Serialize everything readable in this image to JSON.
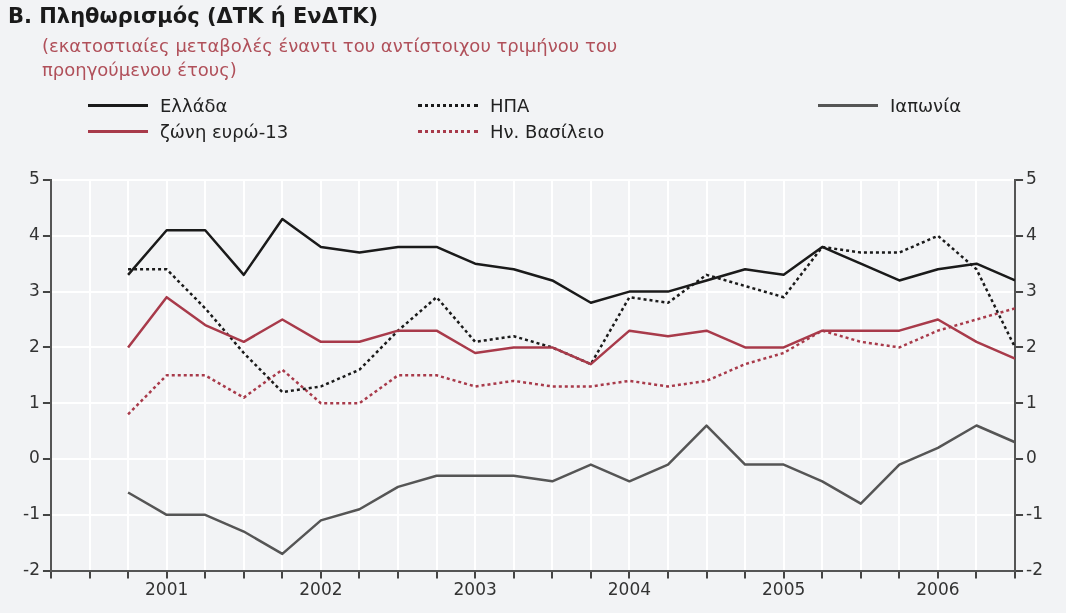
{
  "chart_data": {
    "type": "line",
    "title": "Β. Πληθωρισμός (ΔΤΚ ή ΕνΔΤΚ)",
    "subtitle": "(εκατοστιαίες μεταβολές έναντι του αντίστοιχου τριμήνου του προηγούμενου έτους)",
    "x": [
      2001.25,
      2001.5,
      2001.75,
      2002,
      2002.25,
      2002.5,
      2002.75,
      2003,
      2003.25,
      2003.5,
      2003.75,
      2004,
      2004.25,
      2004.5,
      2004.75,
      2005,
      2005.25,
      2005.5,
      2005.75,
      2006,
      2006.25,
      2006.5,
      2006.75,
      2007
    ],
    "series": [
      {
        "name": "Ελλάδα",
        "color": "#1a1a1a",
        "line_style": "solid",
        "values": [
          3.3,
          4.1,
          4.1,
          3.3,
          4.3,
          3.8,
          3.7,
          3.8,
          3.8,
          3.5,
          3.4,
          3.2,
          2.8,
          3.0,
          3.0,
          3.2,
          3.4,
          3.3,
          3.8,
          3.5,
          3.2,
          3.4,
          3.5,
          3.2
        ]
      },
      {
        "name": "ζώνη ευρώ-13",
        "color": "#a83a4a",
        "line_style": "solid",
        "values": [
          2.0,
          2.9,
          2.4,
          2.1,
          2.5,
          2.1,
          2.1,
          2.3,
          2.3,
          1.9,
          2.0,
          2.0,
          1.7,
          2.3,
          2.2,
          2.3,
          2.0,
          2.0,
          2.3,
          2.3,
          2.3,
          2.5,
          2.1,
          1.8
        ]
      },
      {
        "name": "ΗΠΑ",
        "color": "#1a1a1a",
        "line_style": "dotted",
        "values": [
          3.4,
          3.4,
          2.7,
          1.9,
          1.2,
          1.3,
          1.6,
          2.3,
          2.9,
          2.1,
          2.2,
          2.0,
          1.7,
          2.9,
          2.8,
          3.3,
          3.1,
          2.9,
          3.8,
          3.7,
          3.7,
          4.0,
          3.4,
          2.0
        ]
      },
      {
        "name": "Ην. Βασίλειο",
        "color": "#a83a4a",
        "line_style": "dotted",
        "values": [
          0.8,
          1.5,
          1.5,
          1.1,
          1.6,
          1.0,
          1.0,
          1.5,
          1.5,
          1.3,
          1.4,
          1.3,
          1.3,
          1.4,
          1.3,
          1.4,
          1.7,
          1.9,
          2.3,
          2.1,
          2.0,
          2.3,
          2.5,
          2.7
        ]
      },
      {
        "name": "Ιαπωνία",
        "color": "#555555",
        "line_style": "solid",
        "values": [
          -0.6,
          -1.0,
          -1.0,
          -1.3,
          -1.7,
          -1.1,
          -0.9,
          -0.5,
          -0.3,
          -0.3,
          -0.3,
          -0.4,
          -0.1,
          -0.4,
          -0.1,
          0.6,
          -0.1,
          -0.1,
          -0.4,
          -0.8,
          -0.1,
          0.2,
          0.6,
          0.3
        ]
      }
    ],
    "xlim": [
      2000.75,
      2007
    ],
    "xticks": [
      {
        "value": 2000.75,
        "label": null
      },
      {
        "value": 2001,
        "label": null
      },
      {
        "value": 2001.25,
        "label": null
      },
      {
        "value": 2001.5,
        "label": "2001"
      },
      {
        "value": 2001.75,
        "label": null
      },
      {
        "value": 2002,
        "label": null
      },
      {
        "value": 2002.25,
        "label": null
      },
      {
        "value": 2002.5,
        "label": "2002"
      },
      {
        "value": 2002.75,
        "label": null
      },
      {
        "value": 2003,
        "label": null
      },
      {
        "value": 2003.25,
        "label": null
      },
      {
        "value": 2003.5,
        "label": "2003"
      },
      {
        "value": 2003.75,
        "label": null
      },
      {
        "value": 2004,
        "label": null
      },
      {
        "value": 2004.25,
        "label": null
      },
      {
        "value": 2004.5,
        "label": "2004"
      },
      {
        "value": 2004.75,
        "label": null
      },
      {
        "value": 2005,
        "label": null
      },
      {
        "value": 2005.25,
        "label": null
      },
      {
        "value": 2005.5,
        "label": "2005"
      },
      {
        "value": 2005.75,
        "label": null
      },
      {
        "value": 2006,
        "label": null
      },
      {
        "value": 2006.25,
        "label": null
      },
      {
        "value": 2006.5,
        "label": "2006"
      },
      {
        "value": 2006.75,
        "label": null
      },
      {
        "value": 2007,
        "label": null
      }
    ],
    "ylim": [
      -2,
      5
    ],
    "yticks": [
      -2,
      -1,
      0,
      1,
      2,
      3,
      4,
      5
    ],
    "y2lim": [
      -2,
      5
    ],
    "y2ticks": [
      -2,
      -1,
      0,
      1,
      2,
      3,
      4,
      5
    ],
    "grid": true,
    "legend": "top",
    "marker": "none"
  }
}
